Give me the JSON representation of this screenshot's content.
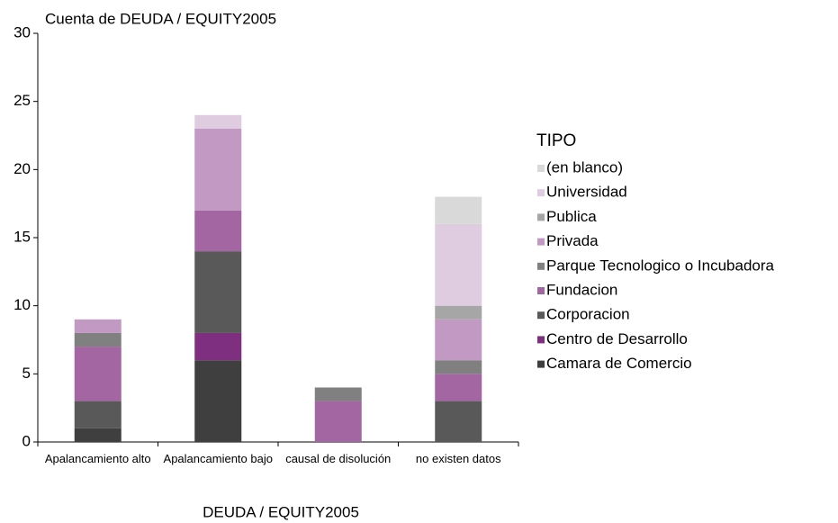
{
  "chart_data": {
    "type": "stacked_bar",
    "title": "Cuenta de DEUDA / EQUITY2005",
    "x_label": "DEUDA / EQUITY2005",
    "legend_title": "TIPO",
    "categories": [
      "Apalancamiento alto",
      "Apalancamiento bajo",
      "causal de disolución",
      "no existen datos"
    ],
    "series": [
      {
        "name": "Camara de Comercio",
        "color": "#3f3f3f",
        "values": [
          1,
          6,
          0,
          0
        ]
      },
      {
        "name": "Centro de Desarrollo",
        "color": "#7f2f7f",
        "values": [
          0,
          2,
          0,
          0
        ]
      },
      {
        "name": "Corporacion",
        "color": "#595959",
        "values": [
          2,
          6,
          0,
          3
        ]
      },
      {
        "name": "Fundacion",
        "color": "#a366a3",
        "values": [
          4,
          3,
          3,
          2
        ]
      },
      {
        "name": "Parque Tecnologico o Incubadora",
        "color": "#808080",
        "values": [
          1,
          0,
          1,
          1
        ]
      },
      {
        "name": "Privada",
        "color": "#c299c2",
        "values": [
          1,
          6,
          0,
          3
        ]
      },
      {
        "name": "Publica",
        "color": "#a6a6a6",
        "values": [
          0,
          0,
          0,
          1
        ]
      },
      {
        "name": "Universidad",
        "color": "#e0cce0",
        "values": [
          0,
          1,
          0,
          6
        ]
      },
      {
        "name": "(en blanco)",
        "color": "#d9d9d9",
        "values": [
          0,
          0,
          0,
          2
        ]
      }
    ],
    "ylim": [
      0,
      30
    ],
    "yticks": [
      0,
      5,
      10,
      15,
      20,
      25,
      30
    ],
    "legend": "right"
  }
}
